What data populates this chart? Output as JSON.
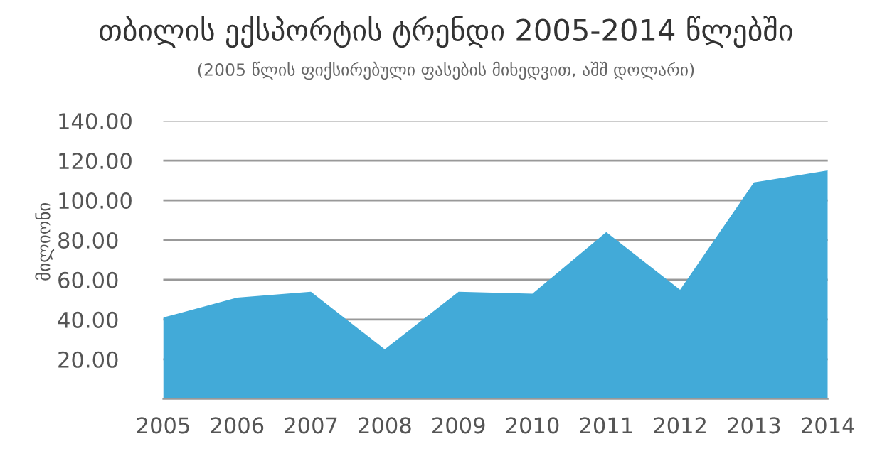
{
  "chart_data": {
    "type": "area",
    "title": "თბილის ექსპორტის ტრენდი 2005-2014 წლებში",
    "subtitle": "(2005 წლის ფიქსირებული ფასების მიხედვით, აშშ დოლარი)",
    "ylabel": "მილიონი",
    "x": [
      2005,
      2006,
      2007,
      2008,
      2009,
      2010,
      2011,
      2012,
      2013,
      2014
    ],
    "series": [
      {
        "color": "#42aad8",
        "values": [
          41,
          51,
          54,
          25,
          54,
          53,
          84,
          55,
          109,
          115
        ]
      }
    ],
    "xlim": [
      2005,
      2014
    ],
    "xticks": [
      2005,
      2006,
      2007,
      2008,
      2009,
      2010,
      2011,
      2012,
      2013,
      2014
    ],
    "ylim": [
      0,
      140
    ],
    "yticks": [
      {
        "value": 20,
        "label": "20.00"
      },
      {
        "value": 40,
        "label": "40.00"
      },
      {
        "value": 60,
        "label": "60.00"
      },
      {
        "value": 80,
        "label": "80.00"
      },
      {
        "value": 100,
        "label": "100.00"
      },
      {
        "value": 120,
        "label": "120.00"
      },
      {
        "value": 140,
        "label": "140.00"
      }
    ],
    "grid": "y",
    "legend": false
  }
}
